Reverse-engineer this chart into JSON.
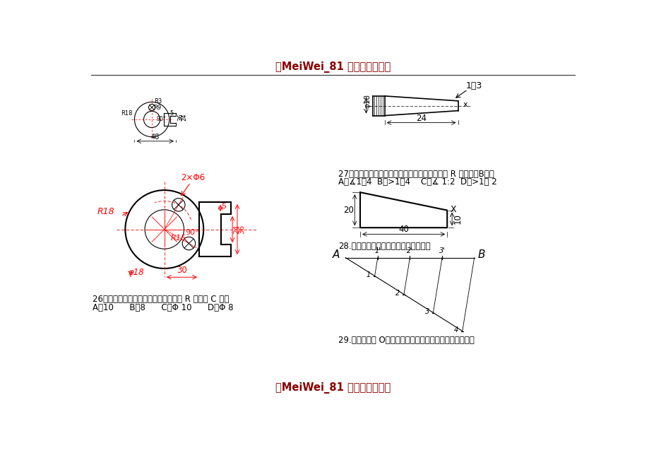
{
  "title": "『MeiWei_81 重点借鉴文档』",
  "footer": "『MeiWei_81 重点借鉴文档』",
  "bg_color": "#ffffff",
  "line_color": "#000000",
  "red_color": "#ff0000",
  "title_color": "#8B0000",
  "q26_text": "26、由右图中的已知尺寸和其锥度可知 R 应为（ C ）。",
  "q26_opts": "A、10      B、8      C、Φ 10      D、Φ 8",
  "q27_text": "27、已知右图中的尺寸，若要标出它的斜度，则 R 应写成（B）。",
  "q27_opts": "A、∡1：4  B、>1：4    C、∡ 1:2  D、>1： 2",
  "q28_text": "28.把下图线段四等分（保留作图轨迹）",
  "q29_text": "29.已知下图圆 O，求作其内接正五边形（保留作图轨迹）"
}
